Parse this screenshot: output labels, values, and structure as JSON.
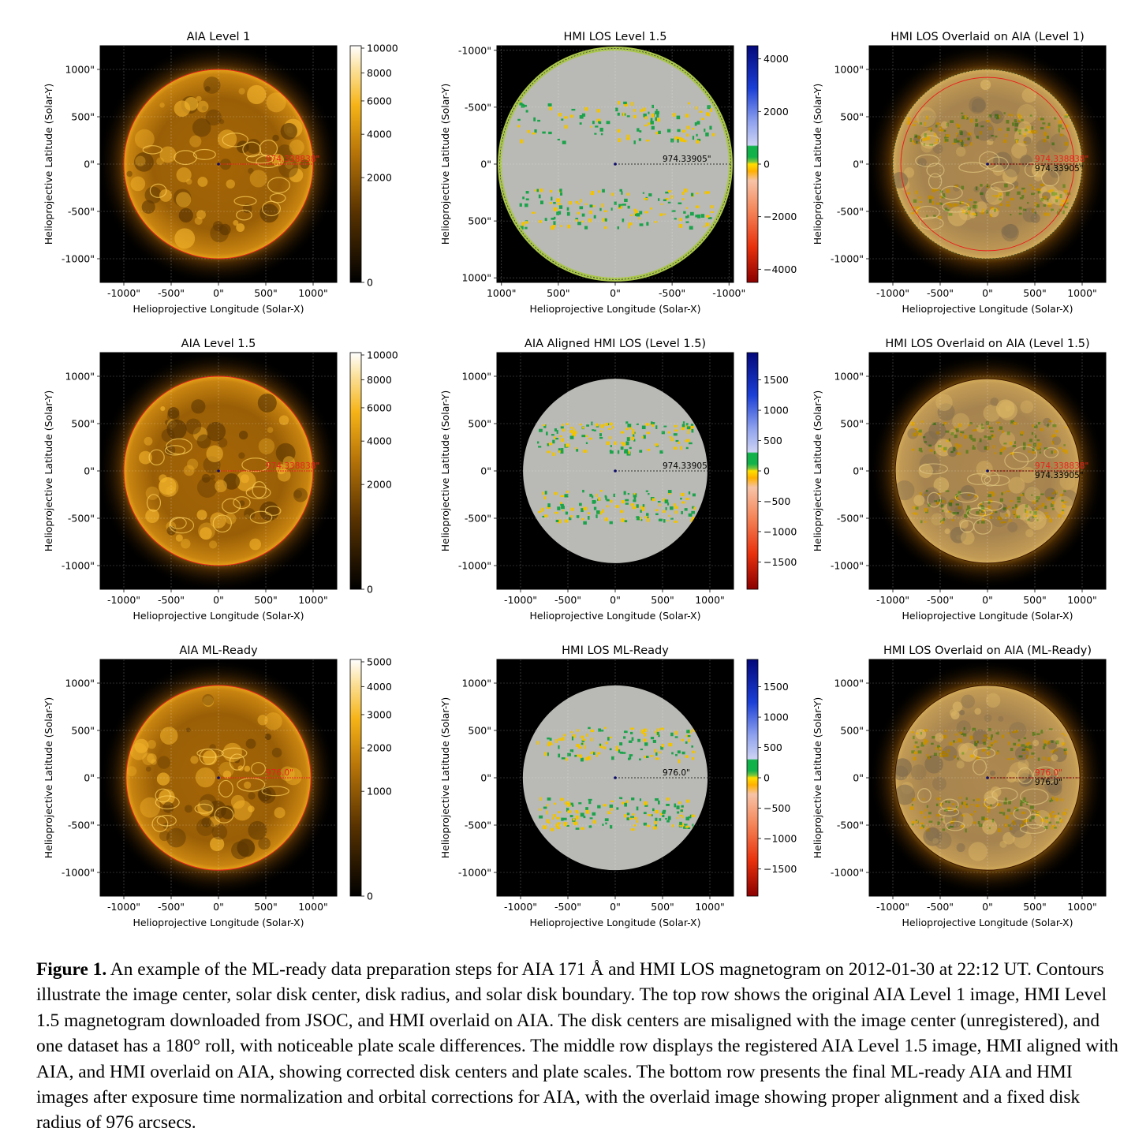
{
  "panels": [
    {
      "title": "AIA Level 1",
      "type": "aia",
      "xlabel": "Helioprojective Longitude (Solar-X)",
      "ylabel": "Helioprojective Latitude (Solar-Y)",
      "xticks": [
        "-1000\"",
        "-500\"",
        "0\"",
        "500\"",
        "1000\""
      ],
      "yticks": [
        "1000\"",
        "500\"",
        "0\"",
        "-500\"",
        "-1000\""
      ],
      "x_range": [
        -1250,
        1250
      ],
      "y_range": [
        -1250,
        1250
      ],
      "disk_radius_arcsec": 1000,
      "annotation_red": "974.338838\"",
      "annotation_black": "",
      "colorbar_ticks": [
        "10000",
        "8000",
        "6000",
        "4000",
        "2000",
        "0"
      ],
      "colorbar_values": [
        10000,
        8000,
        6000,
        4000,
        2000,
        0
      ]
    },
    {
      "title": "HMI LOS Level 1.5",
      "type": "hmi",
      "xlabel": "Helioprojective Longitude (Solar-X)",
      "ylabel": "Helioprojective Latitude (Solar-Y)",
      "xticks": [
        "1000\"",
        "500\"",
        "0\"",
        "-500\"",
        "-1000\""
      ],
      "yticks": [
        "-1000\"",
        "-500\"",
        "0\"",
        "500\"",
        "1000\""
      ],
      "x_range": [
        1040,
        -1040
      ],
      "y_range": [
        1040,
        -1040
      ],
      "disk_radius_arcsec": 1015,
      "annotation_red": "",
      "annotation_black": "974.33905\"",
      "colorbar_ticks": [
        "4000",
        "2000",
        "0",
        "−2000",
        "−4000"
      ],
      "colorbar_values": [
        4000,
        2000,
        0,
        -2000,
        -4000
      ],
      "colorbar_range": [
        -4500,
        4500
      ]
    },
    {
      "title": "HMI LOS Overlaid on AIA (Level 1)",
      "type": "overlay",
      "xlabel": "Helioprojective Longitude (Solar-X)",
      "ylabel": "Helioprojective Latitude (Solar-Y)",
      "xticks": [
        "-1000\"",
        "-500\"",
        "0\"",
        "500\"",
        "1000\""
      ],
      "yticks": [
        "1000\"",
        "500\"",
        "0\"",
        "-500\"",
        "-1000\""
      ],
      "x_range": [
        -1250,
        1250
      ],
      "y_range": [
        -1250,
        1250
      ],
      "disk_radius_arcsec": 1000,
      "annotation_red": "974.338838\"",
      "annotation_black": "974.33905\""
    },
    {
      "title": "AIA Level 1.5",
      "type": "aia",
      "xlabel": "Helioprojective Longitude (Solar-X)",
      "ylabel": "Helioprojective Latitude (Solar-Y)",
      "xticks": [
        "-1000\"",
        "-500\"",
        "0\"",
        "500\"",
        "1000\""
      ],
      "yticks": [
        "1000\"",
        "500\"",
        "0\"",
        "-500\"",
        "-1000\""
      ],
      "x_range": [
        -1250,
        1250
      ],
      "y_range": [
        -1250,
        1250
      ],
      "disk_radius_arcsec": 1000,
      "annotation_red": "974.338838\"",
      "annotation_black": "",
      "colorbar_ticks": [
        "10000",
        "8000",
        "6000",
        "4000",
        "2000",
        "0"
      ],
      "colorbar_values": [
        10000,
        8000,
        6000,
        4000,
        2000,
        0
      ]
    },
    {
      "title": "AIA Aligned HMI LOS (Level 1.5)",
      "type": "hmi",
      "xlabel": "Helioprojective Longitude (Solar-X)",
      "ylabel": "Helioprojective Latitude (Solar-Y)",
      "xticks": [
        "-1000\"",
        "-500\"",
        "0\"",
        "500\"",
        "1000\""
      ],
      "yticks": [
        "1000\"",
        "500\"",
        "0\"",
        "-500\"",
        "-1000\""
      ],
      "x_range": [
        -1250,
        1250
      ],
      "y_range": [
        -1250,
        1250
      ],
      "disk_radius_arcsec": 974,
      "annotation_red": "",
      "annotation_black": "974.33905\"",
      "colorbar_ticks": [
        "1500",
        "1000",
        "500",
        "0",
        "−500",
        "−1000",
        "−1500"
      ],
      "colorbar_values": [
        1500,
        1000,
        500,
        0,
        -500,
        -1000,
        -1500
      ],
      "colorbar_range": [
        -1950,
        1950
      ]
    },
    {
      "title": "HMI LOS Overlaid on AIA (Level 1.5)",
      "type": "overlay",
      "xlabel": "Helioprojective Longitude (Solar-X)",
      "ylabel": "Helioprojective Latitude (Solar-Y)",
      "xticks": [
        "-1000\"",
        "-500\"",
        "0\"",
        "500\"",
        "1000\""
      ],
      "yticks": [
        "1000\"",
        "500\"",
        "0\"",
        "-500\"",
        "-1000\""
      ],
      "x_range": [
        -1250,
        1250
      ],
      "y_range": [
        -1250,
        1250
      ],
      "disk_radius_arcsec": 974,
      "annotation_red": "974.338838\"",
      "annotation_black": "974.33905\""
    },
    {
      "title": "AIA ML-Ready",
      "type": "aia",
      "xlabel": "Helioprojective Longitude (Solar-X)",
      "ylabel": "Helioprojective Latitude (Solar-Y)",
      "xticks": [
        "-1000\"",
        "-500\"",
        "0\"",
        "500\"",
        "1000\""
      ],
      "yticks": [
        "1000\"",
        "500\"",
        "0\"",
        "-500\"",
        "-1000\""
      ],
      "x_range": [
        -1250,
        1250
      ],
      "y_range": [
        -1250,
        1250
      ],
      "disk_radius_arcsec": 976,
      "annotation_red": "976.0\"",
      "annotation_black": "",
      "colorbar_ticks": [
        "5000",
        "4000",
        "3000",
        "2000",
        "1000",
        "0"
      ],
      "colorbar_values": [
        5000,
        4000,
        3000,
        2000,
        1000,
        0
      ]
    },
    {
      "title": "HMI LOS ML-Ready",
      "type": "hmi",
      "xlabel": "Helioprojective Longitude (Solar-X)",
      "ylabel": "Helioprojective Latitude (Solar-Y)",
      "xticks": [
        "-1000\"",
        "-500\"",
        "0\"",
        "500\"",
        "1000\""
      ],
      "yticks": [
        "1000\"",
        "500\"",
        "0\"",
        "-500\"",
        "-1000\""
      ],
      "x_range": [
        -1250,
        1250
      ],
      "y_range": [
        -1250,
        1250
      ],
      "disk_radius_arcsec": 976,
      "annotation_red": "",
      "annotation_black": "976.0\"",
      "colorbar_ticks": [
        "1500",
        "1000",
        "500",
        "0",
        "−500",
        "−1000",
        "−1500"
      ],
      "colorbar_values": [
        1500,
        1000,
        500,
        0,
        -500,
        -1000,
        -1500
      ],
      "colorbar_range": [
        -1950,
        1950
      ]
    },
    {
      "title": "HMI LOS Overlaid on AIA (ML-Ready)",
      "type": "overlay",
      "xlabel": "Helioprojective Longitude (Solar-X)",
      "ylabel": "Helioprojective Latitude (Solar-Y)",
      "xticks": [
        "-1000\"",
        "-500\"",
        "0\"",
        "500\"",
        "1000\""
      ],
      "yticks": [
        "1000\"",
        "500\"",
        "0\"",
        "-500\"",
        "-1000\""
      ],
      "x_range": [
        -1250,
        1250
      ],
      "y_range": [
        -1250,
        1250
      ],
      "disk_radius_arcsec": 976,
      "annotation_red": "976.0\"",
      "annotation_black": "976.0\""
    }
  ],
  "caption": {
    "label": "Figure 1.",
    "text": "An example of the ML-ready data preparation steps for AIA 171 Å  and HMI LOS magnetogram on 2012-01-30 at 22:12 UT. Contours illustrate the image center, solar disk center, disk radius, and solar disk boundary. The top row shows the original AIA Level 1 image, HMI Level 1.5 magnetogram downloaded from JSOC, and HMI overlaid on AIA. The disk centers are misaligned with the image center (unregistered), and one dataset has a 180° roll, with noticeable plate scale differences. The middle row displays the registered AIA Level 1.5 image, HMI aligned with AIA, and HMI overlaid on AIA, showing corrected disk centers and plate scales. The bottom row presents the final ML-ready AIA and HMI images after exposure time normalization and orbital corrections for AIA, with the overlaid image showing proper alignment and a fixed disk radius of 976 arcsecs."
  },
  "colors": {
    "aia_bright": "#f7b21c",
    "aia_mid": "#a86a08",
    "aia_dark": "#2a1500",
    "hmi_gray": "#b9b9b5",
    "contour_red": "#e8221b"
  }
}
